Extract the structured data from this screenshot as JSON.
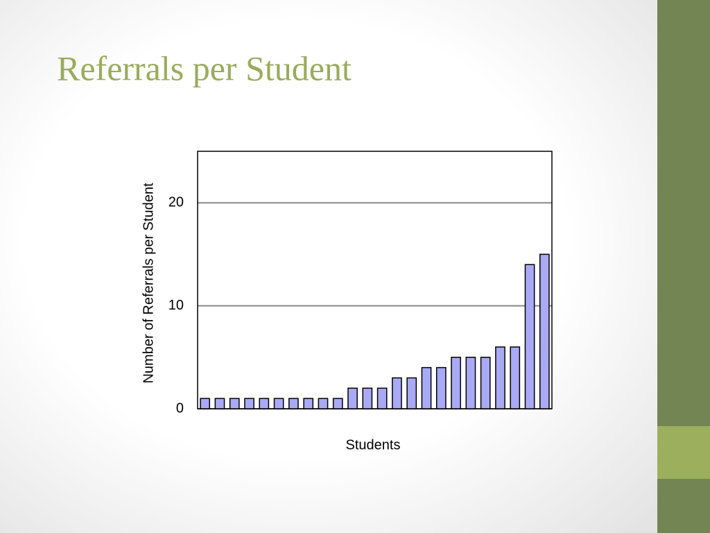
{
  "chart_data": {
    "type": "bar",
    "title": "Referrals per Student",
    "x_label": "Students",
    "y_label": "Number of Referrals per Student",
    "categories": [
      null,
      null,
      null,
      null,
      null,
      null,
      null,
      null,
      null,
      null,
      null,
      null,
      null,
      null,
      null,
      null,
      null,
      null,
      null,
      null,
      null,
      null,
      null,
      null
    ],
    "values": [
      1,
      1,
      1,
      1,
      1,
      1,
      1,
      1,
      1,
      1,
      2,
      2,
      2,
      3,
      3,
      4,
      4,
      5,
      5,
      5,
      6,
      6,
      14,
      15
    ],
    "color": "#a9a9f5",
    "ylim": [
      0,
      25
    ],
    "yticks": [
      0,
      10,
      20
    ],
    "grid": true
  }
}
